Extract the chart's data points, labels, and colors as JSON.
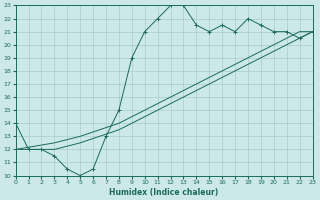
{
  "xlabel": "Humidex (Indice chaleur)",
  "bg_color": "#cce8e8",
  "grid_color": "#aacccc",
  "line_color": "#1a6b5a",
  "xlim": [
    0,
    23
  ],
  "ylim": [
    10,
    23
  ],
  "xticks": [
    0,
    1,
    2,
    3,
    4,
    5,
    6,
    7,
    8,
    9,
    10,
    11,
    12,
    13,
    14,
    15,
    16,
    17,
    18,
    19,
    20,
    21,
    22,
    23
  ],
  "yticks": [
    10,
    11,
    12,
    13,
    14,
    15,
    16,
    17,
    18,
    19,
    20,
    21,
    22,
    23
  ],
  "curve1_x": [
    0,
    1,
    2,
    3,
    4,
    5,
    6,
    7,
    8,
    9,
    10,
    11,
    12,
    13,
    14,
    15,
    16,
    17,
    18,
    19,
    20,
    21,
    22,
    23
  ],
  "curve1_y": [
    14,
    12,
    12,
    11.5,
    10.5,
    10,
    10.5,
    13,
    15,
    19,
    21,
    22,
    23,
    23,
    21.5,
    21,
    21.5,
    21,
    22,
    21.5,
    21,
    21,
    20.5,
    21
  ],
  "curve2_x": [
    0,
    3,
    5,
    8,
    10,
    13,
    15,
    17,
    20,
    22,
    23
  ],
  "curve2_y": [
    12,
    12.5,
    13,
    14,
    15,
    16.5,
    17.5,
    18.5,
    20,
    21,
    21
  ],
  "curve3_x": [
    0,
    3,
    5,
    8,
    10,
    13,
    15,
    17,
    20,
    22,
    23
  ],
  "curve3_y": [
    12,
    12.0,
    12.5,
    13.5,
    14.5,
    16,
    17,
    18,
    19.5,
    20.5,
    21
  ],
  "marker": "+"
}
